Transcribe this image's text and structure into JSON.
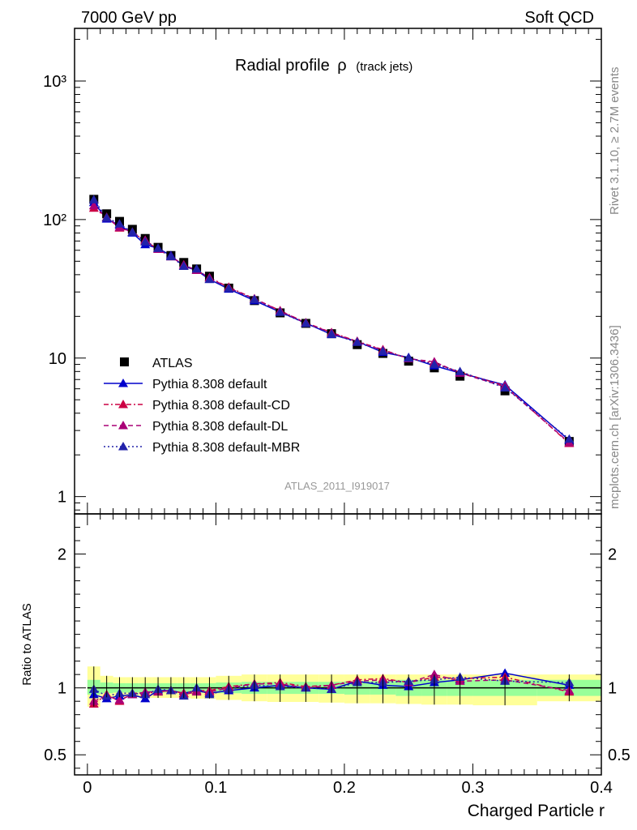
{
  "header": {
    "left": "7000 GeV pp",
    "right": "Soft QCD"
  },
  "side_labels": {
    "top": "Rivet 3.1.10, ≥ 2.7M events",
    "bottom": "mcplots.cern.ch [arXiv:1306.3436]"
  },
  "analysis_id": "ATLAS_2011_I919017",
  "chart_data": [
    {
      "type": "scatter",
      "title": "Radial profile",
      "title_symbol": "ρ",
      "title_suffix": "(track jets)",
      "xlabel": "Charged Particle r",
      "ylabel": "",
      "log_y": true,
      "xlim": [
        -0.01,
        0.4
      ],
      "ylim": [
        0.75,
        2400
      ],
      "x_ticks": [
        "0",
        "0.1",
        "0.2",
        "0.3",
        "0.4"
      ],
      "y_tick_labels": [
        "1",
        "10",
        "10²",
        "10³"
      ],
      "x": [
        0.005,
        0.015,
        0.025,
        0.035,
        0.045,
        0.055,
        0.065,
        0.075,
        0.085,
        0.095,
        0.11,
        0.13,
        0.15,
        0.17,
        0.19,
        0.21,
        0.23,
        0.25,
        0.27,
        0.29,
        0.325,
        0.375
      ],
      "legend_position": "lower-left",
      "series": [
        {
          "name": "ATLAS",
          "marker": "square",
          "color": "#000000",
          "line": "none",
          "values": [
            140,
            110,
            97,
            85,
            73,
            63,
            55,
            49,
            44,
            39,
            32,
            26,
            21.2,
            17.8,
            15.0,
            12.5,
            10.8,
            9.5,
            8.5,
            7.4,
            5.8,
            2.5
          ]
        },
        {
          "name": "Pythia 8.308 default",
          "marker": "triangle",
          "color": "#0000cc",
          "line": "solid",
          "values": [
            133,
            101,
            91,
            80,
            66,
            62,
            55,
            46,
            43,
            37,
            31.5,
            26,
            21.5,
            17.9,
            14.8,
            13.2,
            11.0,
            10.1,
            8.8,
            7.8,
            6.4,
            2.55
          ]
        },
        {
          "name": "Pythia 8.308 default-CD",
          "marker": "triangle",
          "color": "#cc0044",
          "line": "dashdot",
          "values": [
            121,
            104,
            87,
            81,
            70,
            61,
            54,
            47,
            43,
            38,
            32.5,
            26.8,
            22.0,
            18.0,
            15.3,
            13.2,
            11.5,
            9.9,
            9.2,
            7.9,
            6.3,
            2.42
          ]
        },
        {
          "name": "Pythia 8.308 default-DL",
          "marker": "triangle",
          "color": "#aa0077",
          "line": "dashed",
          "values": [
            126,
            103,
            88,
            81,
            71,
            61,
            54,
            47,
            43,
            38,
            32.0,
            26.8,
            21.9,
            17.9,
            15.2,
            13.1,
            11.4,
            9.9,
            9.4,
            7.8,
            6.2,
            2.45
          ]
        },
        {
          "name": "Pythia 8.308 default-MBR",
          "marker": "triangle",
          "color": "#2222aa",
          "line": "dotted",
          "values": [
            139,
            103,
            93,
            81,
            69,
            62,
            54,
            46,
            44,
            37,
            31.8,
            26.5,
            21.4,
            17.8,
            14.9,
            13.0,
            11.2,
            10.0,
            9.0,
            8.0,
            6.1,
            2.6
          ]
        }
      ]
    },
    {
      "type": "scatter",
      "title": "",
      "xlabel": "Charged Particle r",
      "ylabel": "Ratio to ATLAS",
      "xlim": [
        -0.01,
        0.4
      ],
      "ylim": [
        0.35,
        2.3
      ],
      "y_ticks": [
        "0.5",
        "1",
        "2"
      ],
      "x": [
        0.005,
        0.015,
        0.025,
        0.035,
        0.045,
        0.055,
        0.065,
        0.075,
        0.085,
        0.095,
        0.11,
        0.13,
        0.15,
        0.17,
        0.19,
        0.21,
        0.23,
        0.25,
        0.27,
        0.29,
        0.325,
        0.375
      ],
      "bands": {
        "x_edges": [
          0.0,
          0.01,
          0.02,
          0.03,
          0.04,
          0.05,
          0.06,
          0.07,
          0.08,
          0.09,
          0.1,
          0.12,
          0.14,
          0.16,
          0.18,
          0.2,
          0.22,
          0.24,
          0.26,
          0.28,
          0.3,
          0.35,
          0.4
        ],
        "inner_low": [
          0.95,
          0.96,
          0.965,
          0.965,
          0.965,
          0.965,
          0.965,
          0.965,
          0.965,
          0.965,
          0.96,
          0.955,
          0.955,
          0.955,
          0.955,
          0.95,
          0.95,
          0.94,
          0.94,
          0.94,
          0.94,
          0.94
        ],
        "inner_high": [
          1.06,
          1.04,
          1.035,
          1.035,
          1.035,
          1.035,
          1.035,
          1.035,
          1.035,
          1.035,
          1.04,
          1.045,
          1.045,
          1.045,
          1.045,
          1.05,
          1.05,
          1.06,
          1.06,
          1.06,
          1.06,
          1.06
        ],
        "outer_low": [
          0.86,
          0.93,
          0.93,
          0.93,
          0.925,
          0.925,
          0.925,
          0.925,
          0.92,
          0.92,
          0.91,
          0.9,
          0.895,
          0.895,
          0.89,
          0.885,
          0.885,
          0.88,
          0.875,
          0.875,
          0.87,
          0.9
        ],
        "outer_high": [
          1.16,
          1.09,
          1.08,
          1.08,
          1.08,
          1.08,
          1.08,
          1.08,
          1.08,
          1.08,
          1.09,
          1.1,
          1.1,
          1.1,
          1.1,
          1.1,
          1.1,
          1.1,
          1.1,
          1.1,
          1.1,
          1.1
        ]
      },
      "series": [
        {
          "name": "Pythia 8.308 default",
          "marker": "triangle",
          "color": "#0000cc",
          "line": "solid",
          "values": [
            0.95,
            0.92,
            0.94,
            0.95,
            0.92,
            0.98,
            0.98,
            0.96,
            0.98,
            0.96,
            0.98,
            1.0,
            1.02,
            1.0,
            0.99,
            1.05,
            1.02,
            1.01,
            1.04,
            1.06,
            1.11,
            1.02
          ]
        },
        {
          "name": "Pythia 8.308 default-CD",
          "marker": "triangle",
          "color": "#cc0044",
          "line": "dashdot",
          "values": [
            0.88,
            0.95,
            0.9,
            0.96,
            0.96,
            0.97,
            0.98,
            0.96,
            0.98,
            0.98,
            1.01,
            1.03,
            1.04,
            1.01,
            1.02,
            1.06,
            1.07,
            1.04,
            1.08,
            1.07,
            1.08,
            0.97
          ]
        },
        {
          "name": "Pythia 8.308 default-DL",
          "marker": "triangle",
          "color": "#aa0077",
          "line": "dashed",
          "values": [
            0.9,
            0.94,
            0.91,
            0.95,
            0.97,
            0.97,
            0.98,
            0.95,
            0.97,
            0.97,
            1.0,
            1.03,
            1.03,
            1.0,
            1.02,
            1.05,
            1.06,
            1.04,
            1.1,
            1.05,
            1.06,
            0.98
          ]
        },
        {
          "name": "Pythia 8.308 default-MBR",
          "marker": "triangle",
          "color": "#2222aa",
          "line": "dotted",
          "values": [
            0.99,
            0.94,
            0.96,
            0.96,
            0.95,
            0.99,
            0.98,
            0.94,
            1.0,
            0.95,
            0.99,
            1.02,
            1.01,
            1.0,
            0.99,
            1.04,
            1.04,
            1.05,
            1.06,
            1.08,
            1.05,
            1.04
          ]
        }
      ]
    }
  ]
}
